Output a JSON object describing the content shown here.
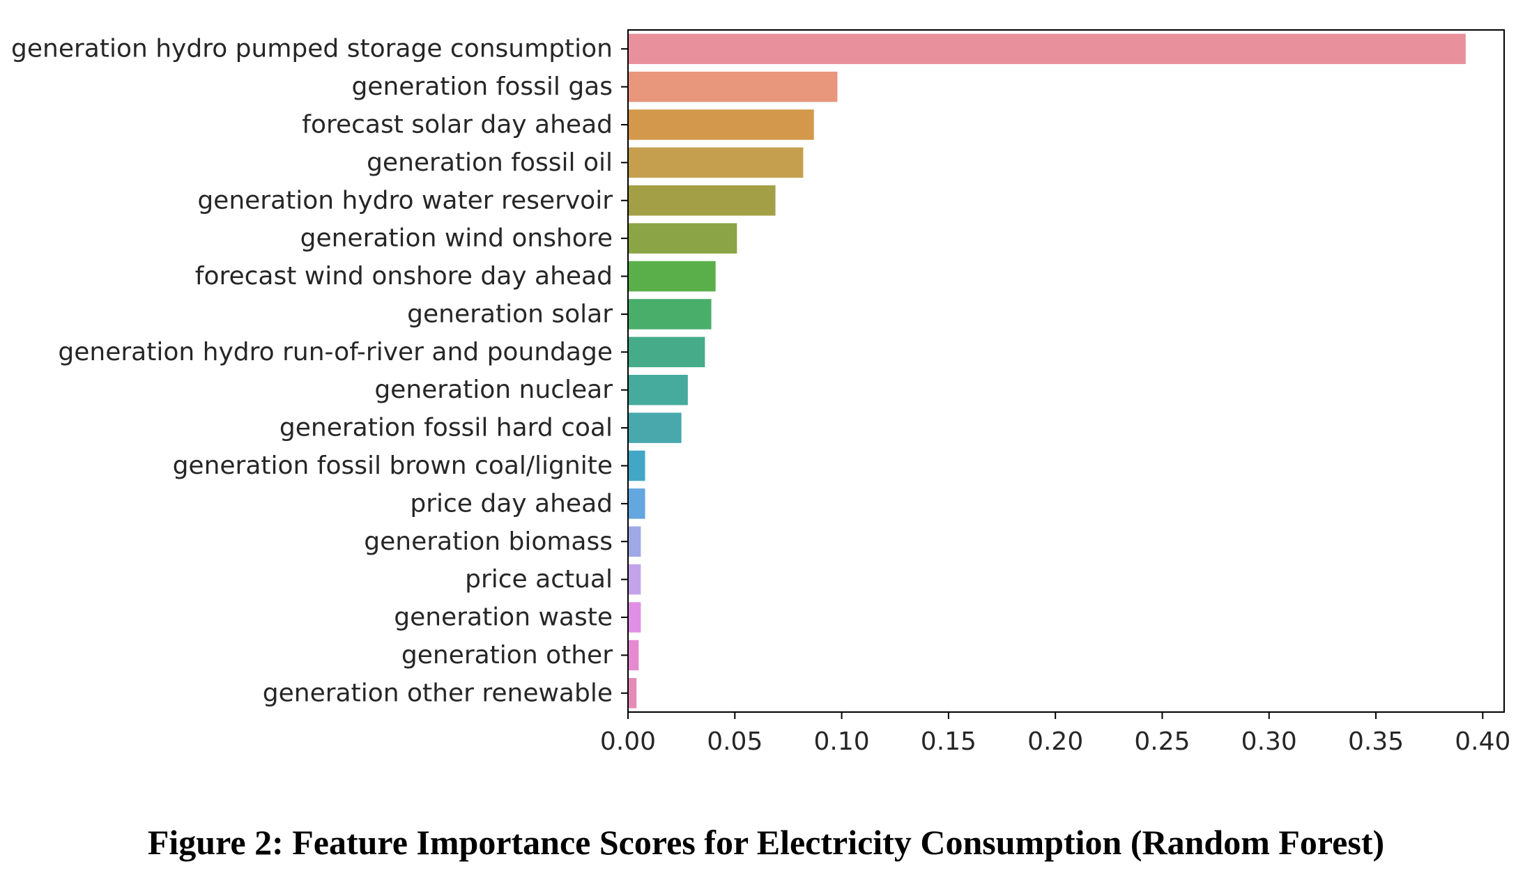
{
  "caption": "Figure 2: Feature Importance Scores for Electricity Consumption (Random Forest)",
  "chart_data": {
    "type": "bar",
    "orientation": "horizontal",
    "title": "",
    "xlabel": "",
    "ylabel": "",
    "xlim": [
      0,
      0.41
    ],
    "xticks": [
      "0.00",
      "0.05",
      "0.10",
      "0.15",
      "0.20",
      "0.25",
      "0.30",
      "0.35",
      "0.40"
    ],
    "grid": false,
    "categories": [
      "generation hydro pumped storage consumption",
      "generation fossil gas",
      "forecast solar day ahead",
      "generation fossil oil",
      "generation hydro water reservoir",
      "generation wind onshore",
      "forecast wind onshore day ahead",
      "generation solar",
      "generation hydro run-of-river and poundage",
      "generation nuclear",
      "generation fossil hard coal",
      "generation fossil brown coal/lignite",
      "price day ahead",
      "generation biomass",
      "price actual",
      "generation waste",
      "generation other",
      "generation other renewable"
    ],
    "values": [
      0.392,
      0.098,
      0.087,
      0.082,
      0.069,
      0.051,
      0.041,
      0.039,
      0.036,
      0.028,
      0.025,
      0.008,
      0.008,
      0.006,
      0.006,
      0.006,
      0.005,
      0.004
    ],
    "colors": [
      "#e8919d",
      "#e8967c",
      "#d3984b",
      "#c59f4d",
      "#a39f46",
      "#8aa446",
      "#5aaf4a",
      "#4aae6b",
      "#45ab88",
      "#46aa9c",
      "#48a8ac",
      "#42a6c6",
      "#64a6df",
      "#9fa9e6",
      "#c3a4ea",
      "#e08fe6",
      "#e58ad0",
      "#e58cb6"
    ]
  }
}
